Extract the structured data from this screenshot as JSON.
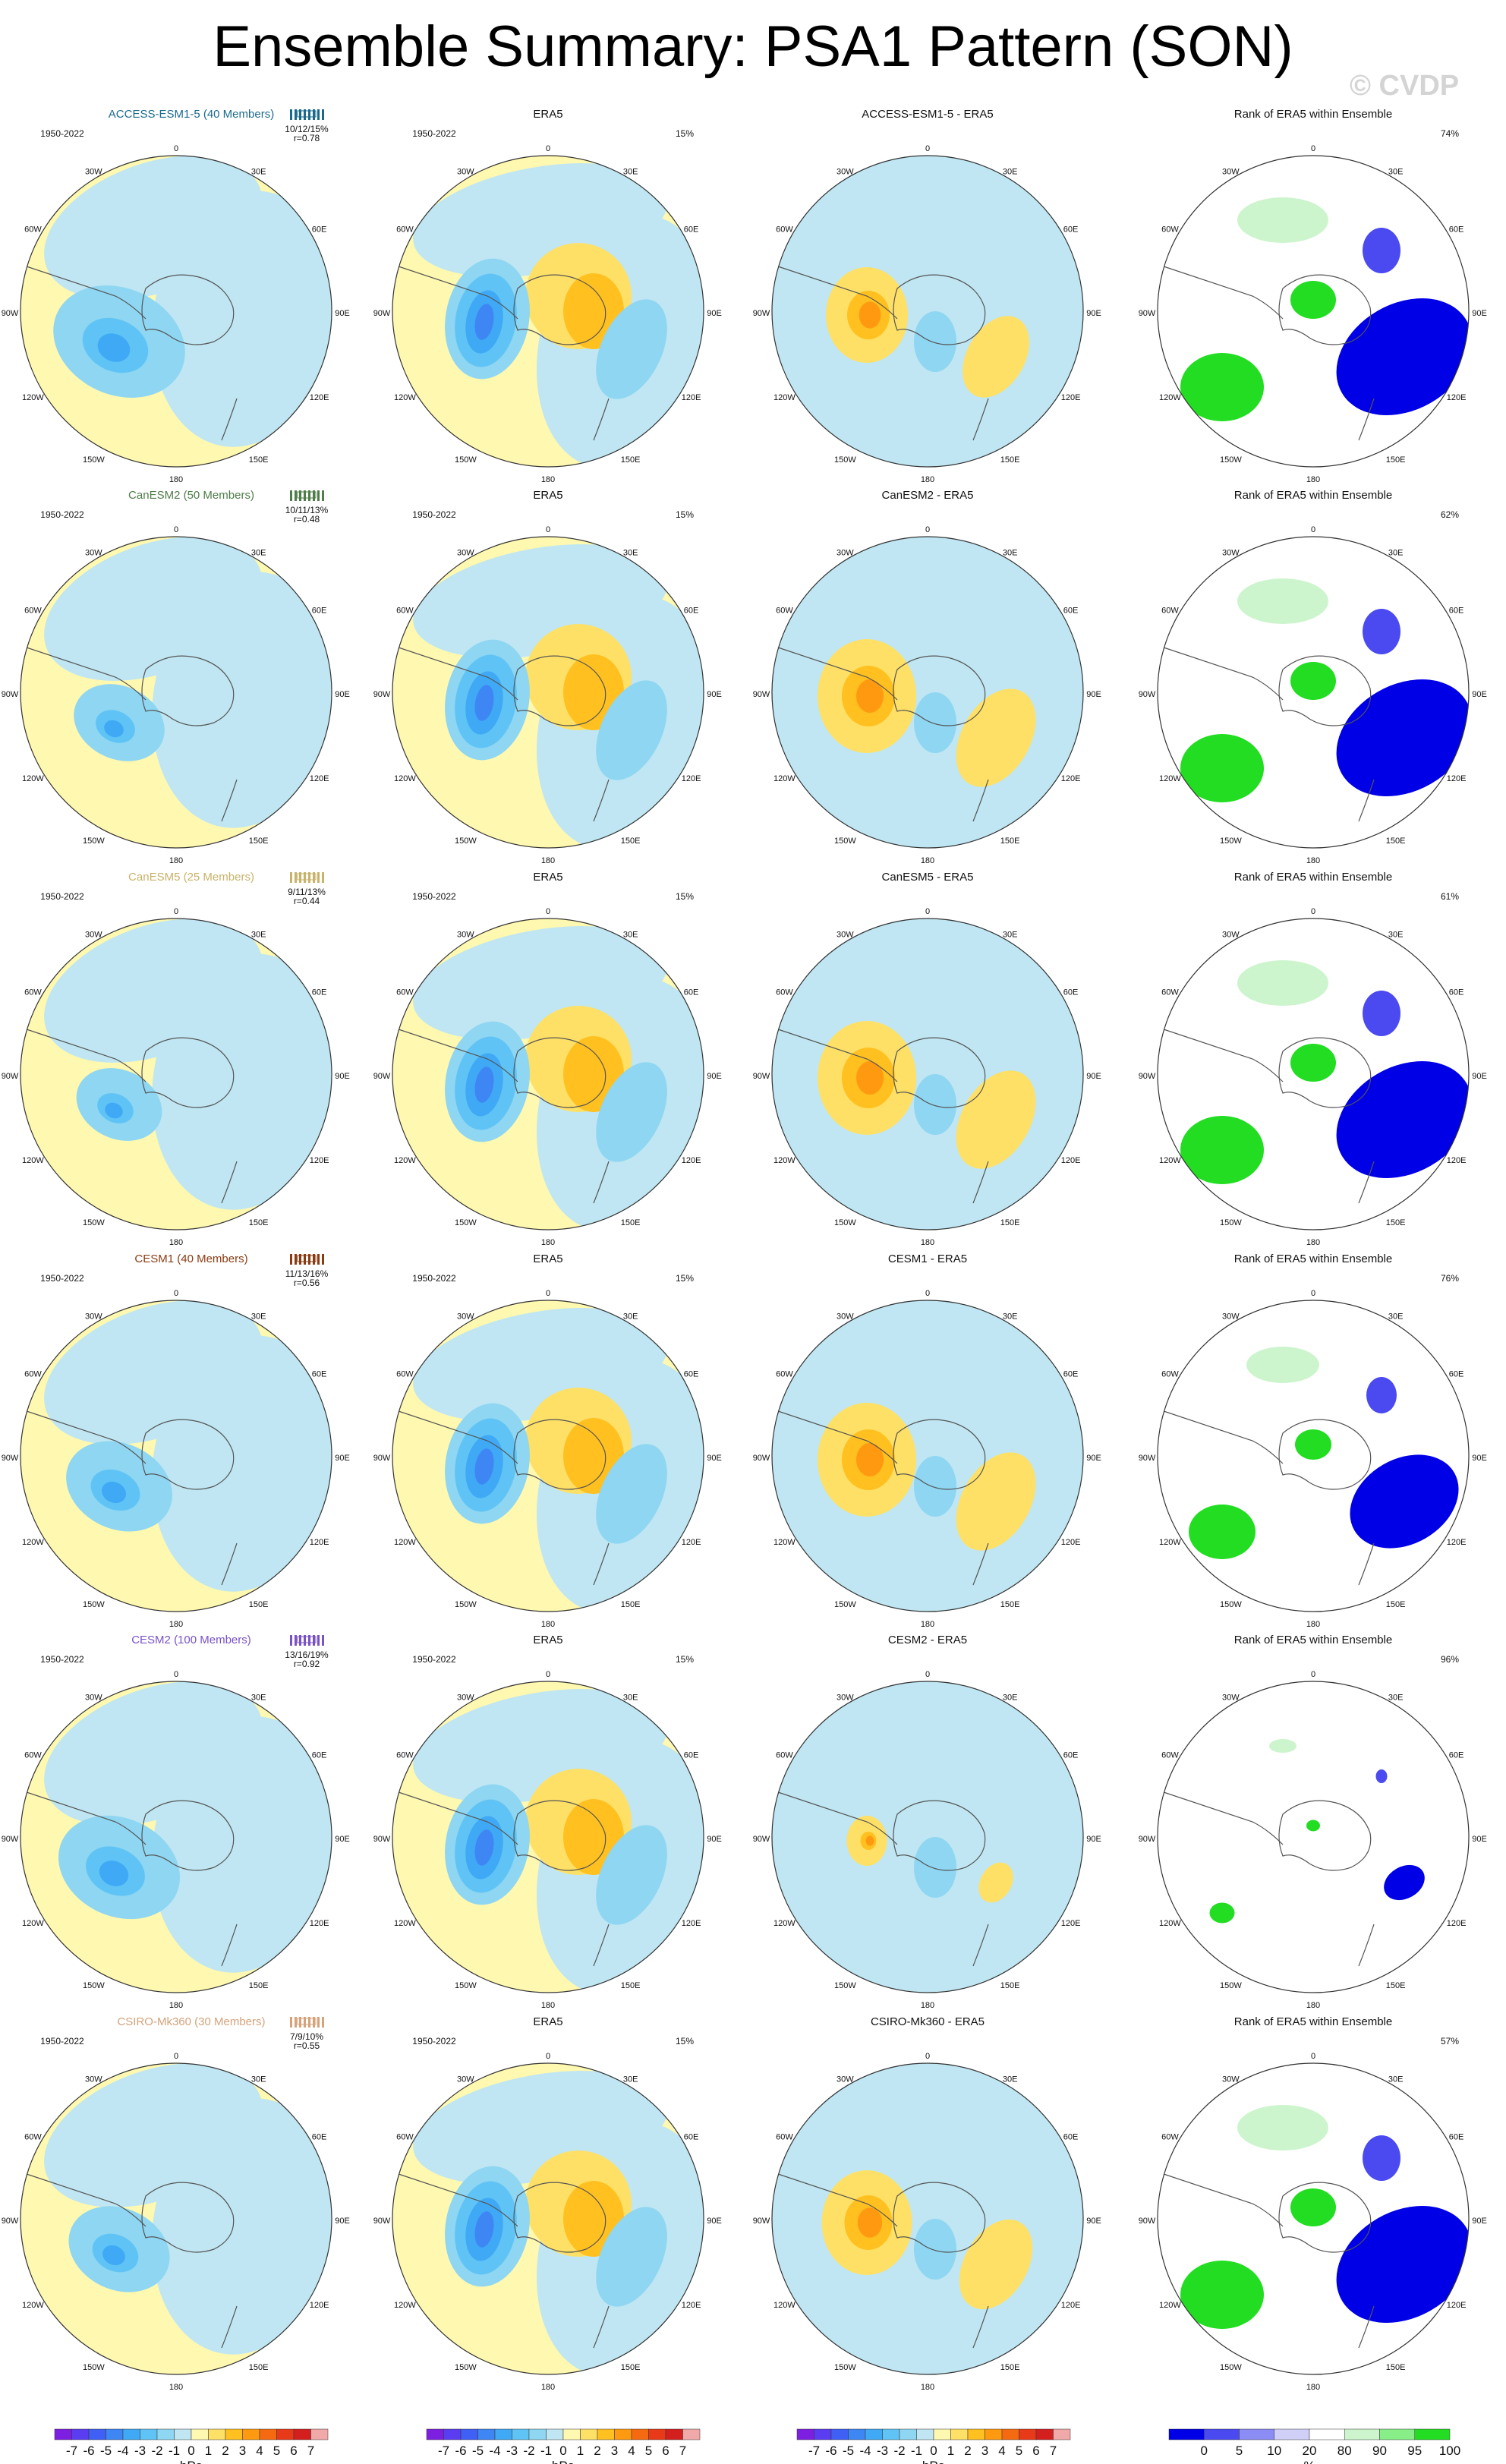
{
  "title": "Ensemble Summary: PSA1 Pattern (SON)",
  "watermark": "© CVDP",
  "period": "1950-2022",
  "era5_pct": "15%",
  "rank_title": "Rank of ERA5 within Ensemble",
  "lon_labels": {
    "n": "0",
    "ne": "30E",
    "e1": "60E",
    "e": "90E",
    "se1": "120E",
    "se": "150E",
    "s": "180",
    "sw": "150W",
    "w1": "120W",
    "w": "90W",
    "nw1": "60W",
    "nw": "30W"
  },
  "rows": [
    {
      "model": "ACCESS-ESM1-5 (40 Members)",
      "color": "#1b6a8e",
      "stats": "10/12/15%",
      "r": "r=0.78",
      "diff_title": "ACCESS-ESM1-5 - ERA5",
      "rank_pct": "74%"
    },
    {
      "model": "CanESM2 (50 Members)",
      "color": "#4f7d4a",
      "stats": "10/11/13%",
      "r": "r=0.48",
      "diff_title": "CanESM2 - ERA5",
      "rank_pct": "62%"
    },
    {
      "model": "CanESM5 (25 Members)",
      "color": "#c8b36a",
      "stats": "9/11/13%",
      "r": "r=0.44",
      "diff_title": "CanESM5 - ERA5",
      "rank_pct": "61%"
    },
    {
      "model": "CESM1 (40 Members)",
      "color": "#8b3b12",
      "stats": "11/13/16%",
      "r": "r=0.56",
      "diff_title": "CESM1 - ERA5",
      "rank_pct": "76%"
    },
    {
      "model": "CESM2 (100 Members)",
      "color": "#7a52c8",
      "stats": "13/16/19%",
      "r": "r=0.92",
      "diff_title": "CESM2 - ERA5",
      "rank_pct": "96%"
    },
    {
      "model": "CSIRO-Mk360 (30 Members)",
      "color": "#d5a27a",
      "stats": "7/9/10%",
      "r": "r=0.55",
      "diff_title": "CSIRO-Mk360 - ERA5",
      "rank_pct": "57%"
    }
  ],
  "era5_title": "ERA5",
  "colorbar": {
    "unit": "hPa",
    "ticks": [
      "-7",
      "-6",
      "-5",
      "-4",
      "-3",
      "-2",
      "-1",
      "0",
      "1",
      "2",
      "3",
      "4",
      "5",
      "6",
      "7"
    ],
    "colors": [
      "#7d1fe0",
      "#5a3df0",
      "#3f5ff5",
      "#3f86f5",
      "#3fa9f5",
      "#5fc4f5",
      "#8ed6f2",
      "#bfe6f2",
      "#fff8b0",
      "#ffe066",
      "#ffc020",
      "#ff9a10",
      "#f56a10",
      "#e83a18",
      "#d41f1f",
      "#f0a8a8"
    ]
  },
  "rank_colorbar": {
    "unit": "%",
    "ticks": [
      "0",
      "5",
      "10",
      "20",
      "80",
      "90",
      "95",
      "100"
    ],
    "colors": [
      "#0000e6",
      "#4a4af0",
      "#8c8cf5",
      "#cfcff8",
      "#ffffff",
      "#cdf5cd",
      "#88ee88",
      "#22dd22"
    ]
  }
}
